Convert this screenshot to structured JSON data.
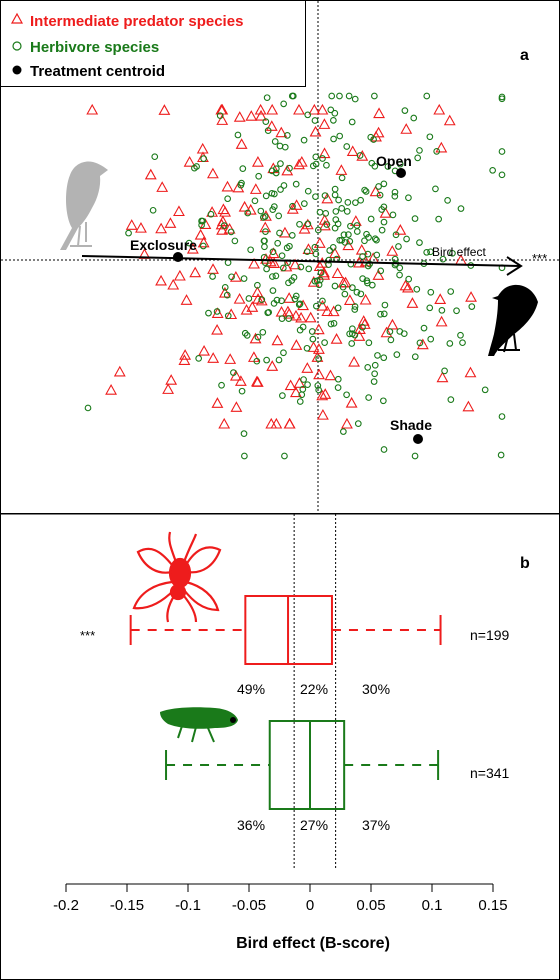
{
  "colors": {
    "predator": "#ee1c1c",
    "herbivore": "#1a7a1a",
    "centroid": "#000000",
    "silhouette_light": "#b3b3b3",
    "silhouette_dark": "#000000",
    "frame": "#000000"
  },
  "chart_data": [
    {
      "panel": "a",
      "type": "scatter",
      "title": "",
      "legend_position": "top-left",
      "legend": [
        {
          "label": "Intermediate predator species",
          "marker": "triangle-open",
          "color": "#ee1c1c"
        },
        {
          "label": "Herbivore species",
          "marker": "circle-open",
          "color": "#1a7a1a"
        },
        {
          "label": "Treatment centroid",
          "marker": "circle-filled",
          "color": "#000000"
        }
      ],
      "axes_visible": false,
      "xlim": [
        -1.0,
        1.0
      ],
      "ylim": [
        -1.0,
        1.0
      ],
      "zero_lines": "dotted",
      "centroids": [
        {
          "label": "Open",
          "x": 0.38,
          "y": 0.4
        },
        {
          "label": "Exclosure",
          "x": -0.64,
          "y": 0.02
        },
        {
          "label": "Shade",
          "x": 0.43,
          "y": -0.72
        }
      ],
      "arrow": {
        "label": "Bird effect",
        "significance": "***",
        "x0": -1.08,
        "y0": 0.02,
        "x1": 0.95,
        "y1": -0.02
      },
      "icons": [
        "bird-light-icon",
        "bird-dark-icon"
      ]
    },
    {
      "panel": "b",
      "type": "box",
      "xlabel": "Bird effect (B-score)",
      "xlim": [
        -0.2,
        0.15
      ],
      "xticks": [
        -0.2,
        -0.15,
        -0.1,
        -0.05,
        0,
        0.05,
        0.1,
        0.15
      ],
      "xtick_labels": [
        "-0.2",
        "-0.15",
        "-0.1",
        "-0.05",
        "0",
        "0.05",
        "0.1",
        "0.15"
      ],
      "reference_lines": [
        -0.013,
        0.021
      ],
      "series": [
        {
          "name": "Intermediate predator species",
          "color": "#ee1c1c",
          "whisker_low": -0.147,
          "q1": -0.053,
          "median": -0.018,
          "q3": 0.018,
          "whisker_high": 0.107,
          "n_label": "n=199",
          "significance": "***",
          "percents": [
            "49%",
            "22%",
            "30%"
          ],
          "icon": "spider-icon"
        },
        {
          "name": "Herbivore species",
          "color": "#1a7a1a",
          "whisker_low": -0.118,
          "q1": -0.033,
          "median": 0.0,
          "q3": 0.028,
          "whisker_high": 0.105,
          "n_label": "n=341",
          "significance": "",
          "percents": [
            "36%",
            "27%",
            "37%"
          ],
          "icon": "leafhopper-icon"
        }
      ]
    }
  ],
  "panel_a": {
    "label": "a",
    "legend": {
      "predator_label": "Intermediate predator species",
      "herbivore_label": "Herbivore species",
      "centroid_label": "Treatment centroid"
    },
    "centroid_labels": {
      "open": "Open",
      "exclosure": "Exclosure",
      "shade": "Shade"
    },
    "arrow_label": "Bird effect",
    "arrow_significance": "***"
  },
  "panel_b": {
    "label": "b",
    "xlabel": "Bird effect (B-score)",
    "predator": {
      "significance": "***",
      "n_label": "n=199",
      "pct_left": "49%",
      "pct_mid": "22%",
      "pct_right": "30%"
    },
    "herbivore": {
      "n_label": "n=341",
      "pct_left": "36%",
      "pct_mid": "27%",
      "pct_right": "37%"
    }
  }
}
